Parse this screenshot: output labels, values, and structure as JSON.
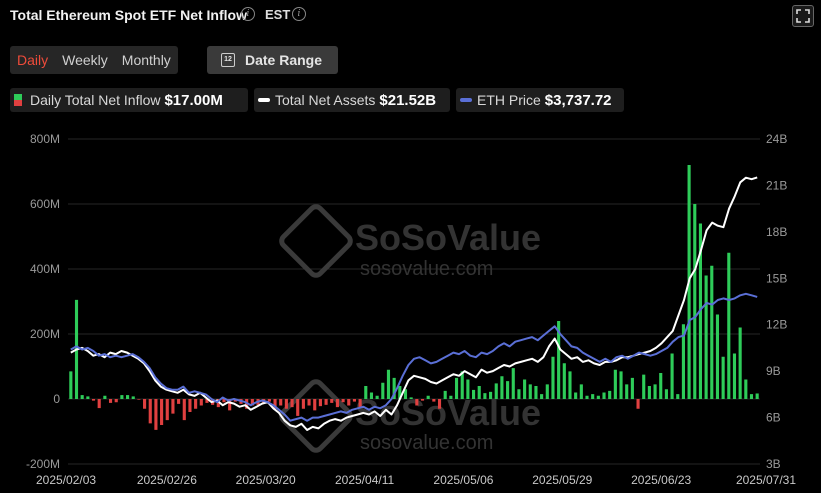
{
  "header": {
    "title": "Total Ethereum Spot ETF Net Inflow",
    "timezone": "EST"
  },
  "tabs": [
    {
      "label": "Daily",
      "active": true
    },
    {
      "label": "Weekly",
      "active": false
    },
    {
      "label": "Monthly",
      "active": false
    }
  ],
  "date_range": {
    "label": "Date Range",
    "icon": "calendar-icon",
    "icon_text": "12"
  },
  "legend": {
    "inflow": {
      "label": "Daily Total Net Inflow",
      "value": "$17.00M"
    },
    "assets": {
      "label": "Total Net Assets",
      "value": "$21.52B"
    },
    "eth": {
      "label": "ETH Price",
      "value": "$3,737.72"
    }
  },
  "watermark": {
    "brand": "SoSoValue",
    "site": "sosovalue.com"
  },
  "colors": {
    "inflow_positive": "#2ecc59",
    "inflow_negative": "#e04040",
    "net_assets": "#ffffff",
    "eth_price": "#5a6fd6",
    "active_tab": "#ee4b3a"
  },
  "chart_data": {
    "type": "bar+line",
    "left_axis": {
      "ticks": [
        "800M",
        "600M",
        "400M",
        "200M",
        "0",
        "-200M"
      ],
      "ylim": [
        -200,
        800
      ],
      "unit": "M"
    },
    "right_axis": {
      "ticks": [
        "24B",
        "21B",
        "18B",
        "15B",
        "12B",
        "9B",
        "6B",
        "3B"
      ],
      "ylim": [
        3,
        24
      ],
      "unit": "B"
    },
    "x_labels": [
      "2025/02/03",
      "2025/02/26",
      "2025/03/20",
      "2025/04/11",
      "2025/05/06",
      "2025/05/29",
      "2025/06/23",
      "2025/07/31"
    ],
    "series": [
      {
        "name": "Daily Total Net Inflow",
        "axis": "left",
        "kind": "bar",
        "values": [
          85,
          305,
          12,
          8,
          -5,
          -28,
          10,
          -12,
          -10,
          12,
          12,
          8,
          -2,
          -30,
          -75,
          -95,
          -80,
          -65,
          -45,
          -15,
          -65,
          -40,
          -30,
          -20,
          -12,
          -18,
          -25,
          -10,
          -35,
          -8,
          -15,
          -30,
          -20,
          -18,
          -12,
          -8,
          -30,
          -20,
          -30,
          -25,
          -52,
          -30,
          -20,
          -35,
          -22,
          -18,
          -12,
          -25,
          -10,
          -20,
          -8,
          -25,
          40,
          20,
          10,
          50,
          90,
          65,
          40,
          30,
          5,
          -20,
          -5,
          10,
          -8,
          -30,
          25,
          10,
          65,
          85,
          60,
          28,
          40,
          18,
          22,
          48,
          70,
          55,
          95,
          30,
          60,
          45,
          40,
          15,
          45,
          130,
          240,
          110,
          85,
          20,
          45,
          10,
          15,
          10,
          20,
          25,
          90,
          85,
          45,
          65,
          -30,
          75,
          40,
          45,
          80,
          30,
          140,
          15,
          230,
          720,
          600,
          540,
          380,
          410,
          260,
          130,
          450,
          140,
          220,
          60,
          15,
          17
        ]
      },
      {
        "name": "Total Net Assets",
        "axis": "right",
        "kind": "line",
        "values": [
          10.2,
          10.4,
          10.5,
          10.3,
          10.0,
          10.1,
          9.9,
          10.2,
          10.1,
          10.3,
          10.2,
          10.0,
          9.8,
          9.5,
          9.0,
          8.4,
          8.0,
          7.8,
          7.7,
          7.6,
          7.8,
          7.5,
          7.4,
          7.6,
          7.3,
          7.0,
          7.1,
          6.8,
          7.0,
          6.9,
          6.7,
          6.8,
          6.5,
          6.7,
          6.9,
          7.0,
          6.6,
          6.3,
          5.8,
          5.5,
          5.4,
          5.6,
          5.2,
          5.4,
          5.3,
          5.6,
          5.8,
          5.9,
          5.8,
          6.0,
          6.1,
          6.2,
          6.3,
          6.2,
          6.4,
          6.1,
          6.5,
          6.2,
          6.8,
          7.6,
          8.4,
          8.7,
          8.6,
          8.5,
          8.3,
          8.2,
          8.4,
          8.6,
          8.8,
          8.7,
          9.0,
          8.8,
          8.6,
          9.1,
          8.9,
          9.0,
          9.2,
          9.4,
          9.3,
          9.5,
          9.6,
          9.7,
          9.8,
          9.6,
          9.9,
          10.6,
          11.1,
          10.4,
          10.1,
          9.8,
          9.9,
          9.6,
          9.7,
          9.5,
          9.4,
          9.6,
          9.6,
          9.7,
          9.9,
          9.9,
          10.0,
          10.1,
          10.2,
          10.3,
          10.5,
          10.8,
          11.2,
          11.6,
          12.6,
          13.6,
          15.0,
          15.6,
          16.8,
          18.1,
          18.6,
          18.4,
          18.3,
          19.5,
          20.3,
          21.2,
          21.5,
          21.4,
          21.52
        ]
      },
      {
        "name": "ETH Price",
        "axis": "right",
        "kind": "line",
        "values": [
          10.4,
          10.6,
          10.4,
          10.5,
          10.3,
          10.0,
          10.1,
          9.9,
          10.0,
          9.9,
          10.0,
          10.1,
          9.9,
          9.6,
          9.2,
          8.6,
          8.2,
          7.9,
          7.8,
          7.8,
          8.0,
          7.6,
          7.7,
          7.6,
          7.5,
          7.2,
          7.0,
          7.3,
          7.1,
          7.2,
          7.1,
          7.0,
          6.8,
          7.0,
          7.1,
          7.0,
          6.8,
          6.5,
          6.2,
          5.8,
          5.9,
          6.0,
          5.8,
          6.0,
          6.0,
          6.1,
          6.2,
          6.3,
          6.4,
          6.3,
          6.5,
          6.6,
          6.7,
          6.5,
          6.7,
          6.6,
          6.8,
          7.2,
          7.9,
          8.7,
          9.4,
          9.8,
          9.9,
          9.7,
          9.5,
          9.6,
          9.8,
          10.0,
          10.2,
          10.1,
          10.3,
          10.0,
          9.9,
          10.2,
          10.1,
          10.3,
          10.6,
          10.8,
          10.6,
          10.9,
          11.0,
          11.1,
          11.2,
          11.0,
          11.3,
          11.6,
          11.9,
          11.4,
          11.0,
          10.6,
          10.5,
          10.2,
          10.0,
          9.8,
          9.6,
          9.8,
          9.6,
          9.9,
          10.0,
          9.8,
          10.0,
          10.2,
          10.1,
          10.0,
          10.1,
          10.3,
          10.5,
          10.9,
          11.2,
          11.3,
          12.3,
          12.5,
          13.0,
          13.4,
          13.3,
          13.6,
          13.7,
          13.6,
          13.7,
          13.9,
          14.0,
          13.9,
          13.8
        ]
      }
    ]
  }
}
